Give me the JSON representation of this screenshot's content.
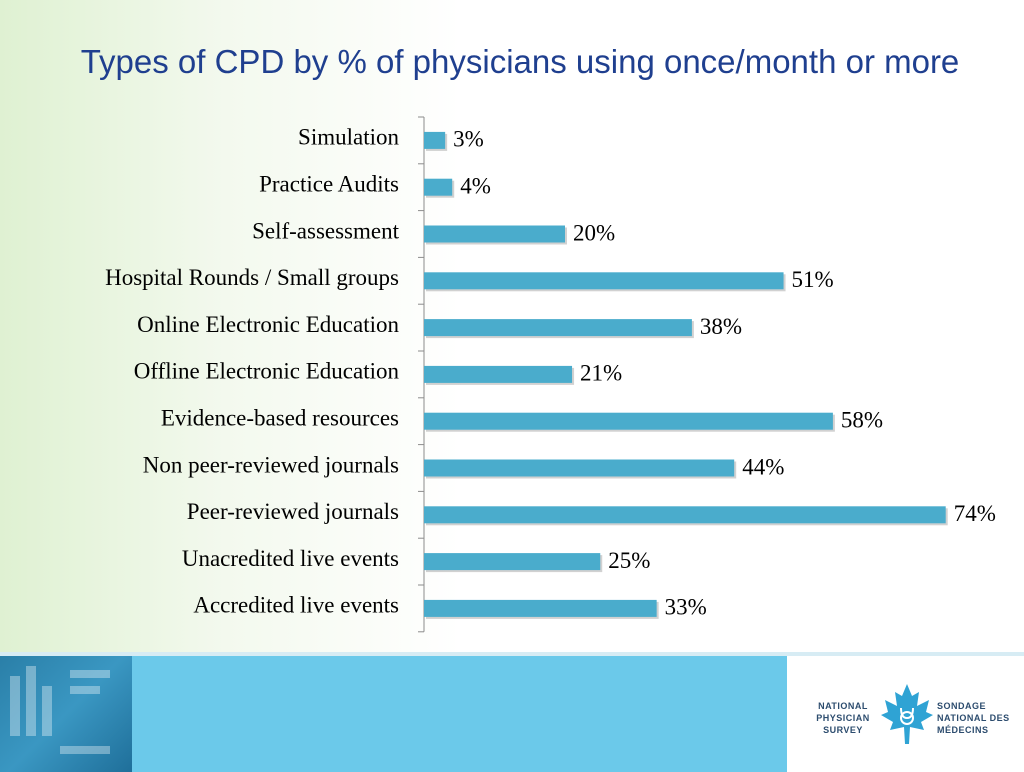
{
  "title": "Types of CPD by % of  physicians using once/month or more",
  "colors": {
    "title": "#1f3f8f",
    "bar": "#4aaccc",
    "footer_band": "#6bc9ea",
    "logo_leaf": "#2fa3d4"
  },
  "chart_data": {
    "type": "bar",
    "orientation": "horizontal",
    "title": "Types of CPD by % of  physicians using once/month or more",
    "categories": [
      "Simulation",
      "Practice Audits",
      "Self-assessment",
      "Hospital Rounds / Small groups",
      "Online Electronic Education",
      "Offline Electronic Education",
      "Evidence-based resources",
      "Non peer-reviewed journals",
      "Peer-reviewed journals",
      "Unacredited live events",
      "Accredited live events"
    ],
    "values": [
      3,
      4,
      20,
      51,
      38,
      21,
      58,
      44,
      74,
      25,
      33
    ],
    "value_labels": [
      "3%",
      "4%",
      "20%",
      "51%",
      "38%",
      "21%",
      "58%",
      "44%",
      "74%",
      "25%",
      "33%"
    ],
    "xlim": [
      0,
      75
    ],
    "grid": false,
    "legend": "none"
  },
  "footer": {
    "logo_left_lines": [
      "NATIONAL",
      "PHYSICIAN",
      "SURVEY"
    ],
    "logo_right_lines": [
      "SONDAGE",
      "NATIONAL DES",
      "MÉDECINS"
    ]
  }
}
